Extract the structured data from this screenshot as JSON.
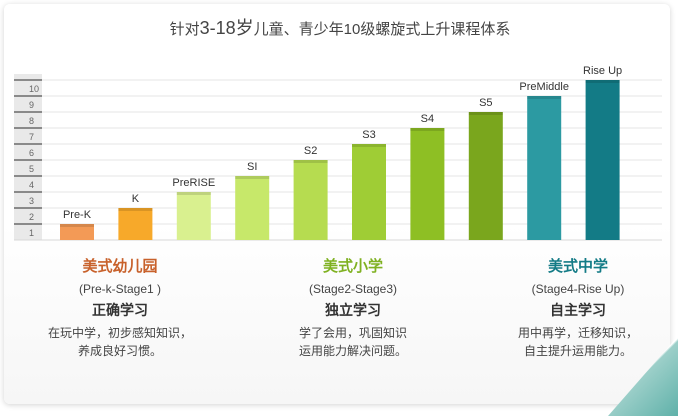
{
  "title": {
    "prefix": "针对",
    "age": "3-18岁",
    "suffix": "儿童、青少年10级螺旋式上升课程体系"
  },
  "chart_data": {
    "type": "bar",
    "categories": [
      "Pre-K",
      "K",
      "PreRISE",
      "SI",
      "S2",
      "S3",
      "S4",
      "S5",
      "PreMiddle",
      "Rise Up"
    ],
    "values": [
      1,
      2,
      3,
      4,
      5,
      6,
      7,
      8,
      9,
      10
    ],
    "ylim": [
      0,
      10
    ],
    "yticks": [
      "1",
      "2",
      "3",
      "4",
      "5",
      "6",
      "7",
      "8",
      "9",
      "10"
    ],
    "colors": [
      "#f39a56",
      "#f7a92a",
      "#d9f08f",
      "#c7e86a",
      "#b6dc50",
      "#9fcd35",
      "#8ebf24",
      "#7aa61d",
      "#2c9aa2",
      "#137b86"
    ]
  },
  "sections": [
    {
      "stage": "美式幼儿园",
      "range": "(Pre-k-Stage1 )",
      "mode": "正确学习",
      "desc1": "在玩中学，初步感知知识，",
      "desc2": "养成良好习惯。",
      "color": "#c8612b"
    },
    {
      "stage": "美式小学",
      "range": "(Stage2-Stage3)",
      "mode": "独立学习",
      "desc1": "学了会用，巩固知识",
      "desc2": "运用能力解决问题。",
      "color": "#7fb121"
    },
    {
      "stage": "美式中学",
      "range": "(Stage4-Rise Up)",
      "mode": "自主学习",
      "desc1": "用中再学，迁移知识，",
      "desc2": "自主提升运用能力。",
      "color": "#137b86"
    }
  ]
}
